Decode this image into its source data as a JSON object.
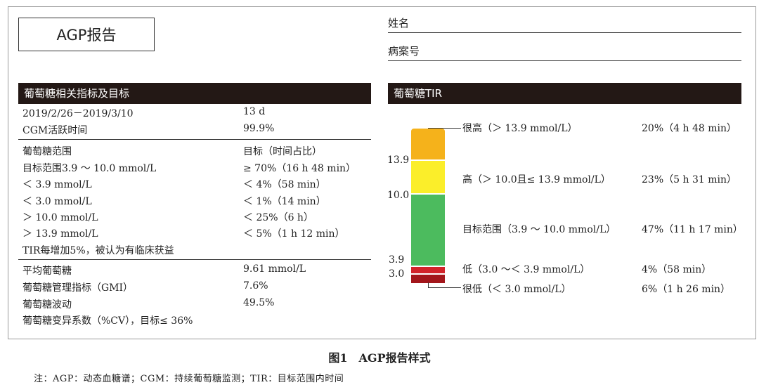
{
  "report_title": "AGP报告",
  "name_label": "姓名",
  "record_label": "病案号",
  "glucose_section": {
    "header": "葡萄糖相关指标及目标",
    "period": {
      "label": "2019/2/26－2019/3/10",
      "value": "13 d"
    },
    "cgm_active": {
      "label": "CGM活跃时间",
      "value": "99.9%"
    },
    "range_header": {
      "label": "葡萄糖范围",
      "value": "目标（时间占比）"
    },
    "ranges": [
      {
        "label": "目标范围3.9 ～ 10.0 mmol/L",
        "value": "≥ 70%（16 h 48 min）"
      },
      {
        "label": "＜ 3.9 mmol/L",
        "value": "＜ 4%（58 min）"
      },
      {
        "label": "＜ 3.0 mmol/L",
        "value": "＜ 1%（14 min）"
      },
      {
        "label": "＞ 10.0 mmol/L",
        "value": "＜ 25%（6 h）"
      },
      {
        "label": "＞ 13.9 mmol/L",
        "value": "＜ 5%（1 h 12 min）"
      }
    ],
    "tir_note": "TIR每增加5%，被认为有临床获益",
    "mean": {
      "label": "平均葡萄糖",
      "value": "9.61 mmol/L"
    },
    "gmi": {
      "label": "葡萄糖管理指标（GMI）",
      "value": "7.6%"
    },
    "variability": {
      "label": "葡萄糖波动",
      "value": "49.5%"
    },
    "cv_note": "葡萄糖变异系数（%CV），目标≤ 36%"
  },
  "tir_section": {
    "header": "葡萄糖TIR",
    "axis_ticks": [
      "13.9",
      "10.0",
      "3.9",
      "3.0"
    ],
    "colors": {
      "very_high": "#f5b21b",
      "high": "#fbee2a",
      "target": "#4cbb5e",
      "low": "#d2232a",
      "very_low": "#a3161b"
    },
    "bands": [
      {
        "key": "very_high",
        "label": "很高（＞ 13.9 mmol/L）",
        "percent": 20,
        "value": "20%（4 h 48 min）"
      },
      {
        "key": "high",
        "label": "高（＞ 10.0且≤ 13.9 mmol/L）",
        "percent": 23,
        "value": "23%（5 h 31 min）"
      },
      {
        "key": "target",
        "label": "目标范围（3.9 ～ 10.0 mmol/L）",
        "percent": 47,
        "value": "47%（11 h 17 min）"
      },
      {
        "key": "low",
        "label": "低（3.0 ～＜ 3.9 mmol/L）",
        "percent": 4,
        "value": "4%（58 min）"
      },
      {
        "key": "very_low",
        "label": "很低（＜ 3.0 mmol/L）",
        "percent": 6,
        "value": "6%（1 h 26 min）"
      }
    ]
  },
  "caption": "图1　AGP报告样式",
  "footnote": "注：AGP：动态血糖谱；CGM：持续葡萄糖监测；TIR：目标范围内时间"
}
